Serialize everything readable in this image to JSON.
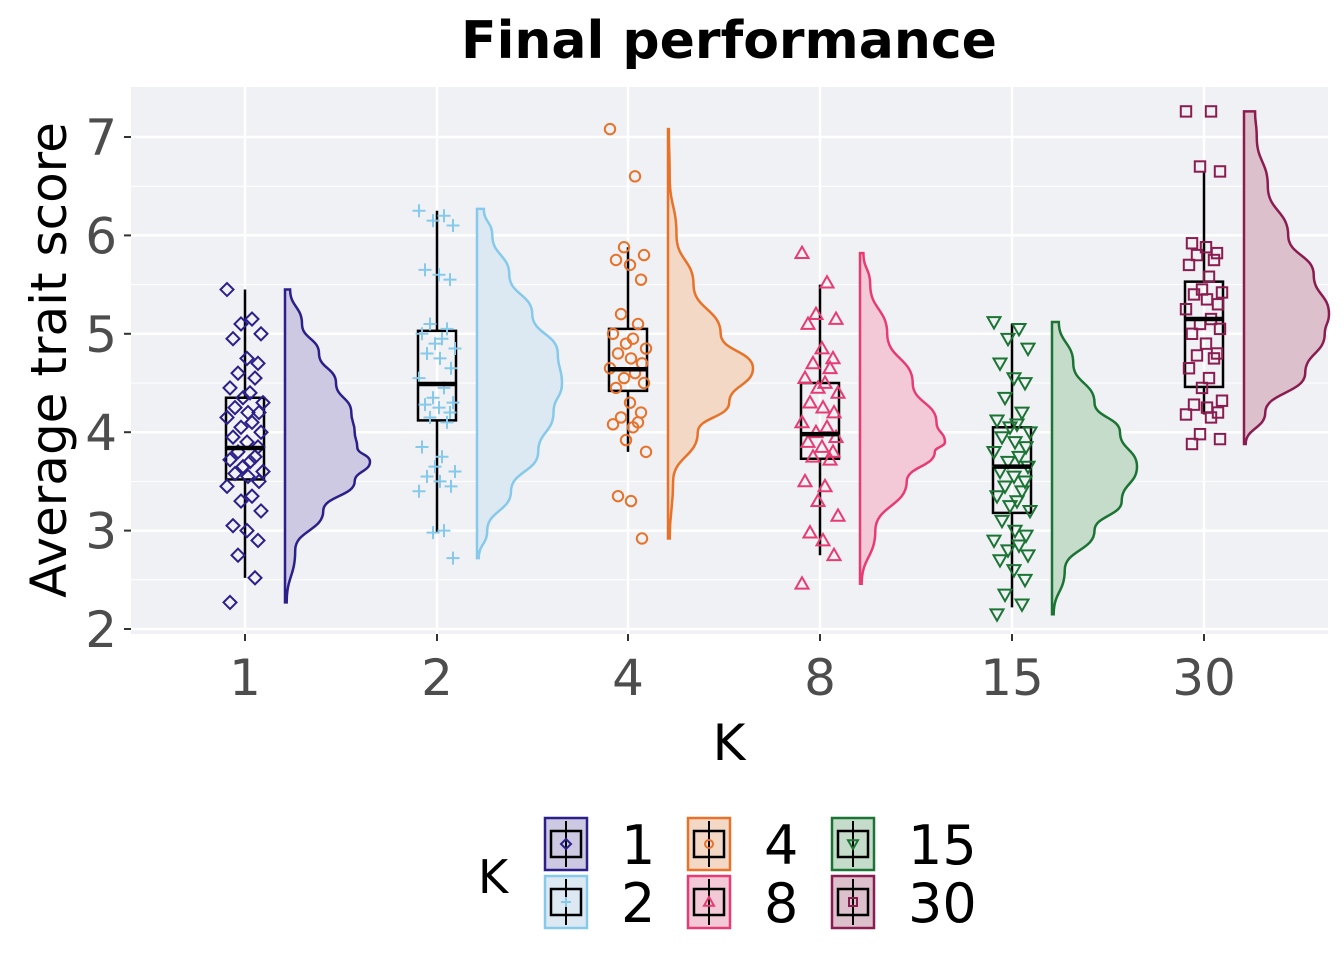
{
  "chart_data": {
    "type": "raincloud",
    "title": "Final performance",
    "xlabel": "K",
    "ylabel": "Average trait score",
    "categories": [
      "1",
      "2",
      "4",
      "8",
      "15",
      "30"
    ],
    "ylim": [
      1.92,
      7.5
    ],
    "yticks": [
      2,
      3,
      4,
      5,
      6,
      7
    ],
    "grid": true,
    "legend_title": "K",
    "legend_position": "bottom",
    "series": [
      {
        "name": "1",
        "color": "#2b1f8a",
        "fill": "#cdc9e2",
        "shape": "diamond",
        "box": {
          "min": 2.52,
          "q1": 3.52,
          "median": 3.84,
          "q3": 4.35,
          "max": 5.45
        },
        "points": [
          5.45,
          5.15,
          5.1,
          5.0,
          4.95,
          4.75,
          4.7,
          4.6,
          4.55,
          4.45,
          4.4,
          4.35,
          4.3,
          4.25,
          4.2,
          4.2,
          4.15,
          4.1,
          4.05,
          4.0,
          3.95,
          3.9,
          3.85,
          3.8,
          3.75,
          3.72,
          3.7,
          3.65,
          3.6,
          3.58,
          3.55,
          3.5,
          3.45,
          3.35,
          3.3,
          3.2,
          3.05,
          3.0,
          2.9,
          2.75,
          2.52,
          2.27
        ],
        "density": [
          [
            2.27,
            0.02
          ],
          [
            2.8,
            0.12
          ],
          [
            3.2,
            0.45
          ],
          [
            3.5,
            0.82
          ],
          [
            3.7,
            1.0
          ],
          [
            3.85,
            0.85
          ],
          [
            4.0,
            0.82
          ],
          [
            4.2,
            0.78
          ],
          [
            4.5,
            0.6
          ],
          [
            4.8,
            0.4
          ],
          [
            5.1,
            0.2
          ],
          [
            5.45,
            0.06
          ]
        ]
      },
      {
        "name": "2",
        "color": "#86c9ea",
        "fill": "#dce9f3",
        "shape": "plus",
        "box": {
          "min": 2.98,
          "q1": 4.12,
          "median": 4.49,
          "q3": 5.03,
          "max": 6.25
        },
        "points": [
          6.25,
          6.2,
          6.15,
          6.1,
          5.65,
          5.6,
          5.55,
          5.1,
          5.05,
          5.0,
          4.95,
          4.9,
          4.85,
          4.8,
          4.75,
          4.65,
          4.55,
          4.45,
          4.35,
          4.3,
          4.28,
          4.25,
          4.2,
          4.15,
          4.1,
          3.85,
          3.75,
          3.65,
          3.6,
          3.55,
          3.5,
          3.45,
          3.4,
          3.0,
          2.98,
          2.72
        ],
        "density": [
          [
            2.72,
            0.02
          ],
          [
            3.0,
            0.12
          ],
          [
            3.4,
            0.4
          ],
          [
            3.8,
            0.72
          ],
          [
            4.2,
            0.9
          ],
          [
            4.5,
            1.0
          ],
          [
            4.8,
            0.95
          ],
          [
            5.2,
            0.65
          ],
          [
            5.6,
            0.38
          ],
          [
            6.0,
            0.18
          ],
          [
            6.27,
            0.08
          ]
        ]
      },
      {
        "name": "4",
        "color": "#e7722a",
        "fill": "#f3d8c5",
        "shape": "circle",
        "box": {
          "min": 3.8,
          "q1": 4.42,
          "median": 4.64,
          "q3": 5.05,
          "max": 5.88
        },
        "points": [
          7.08,
          6.6,
          5.88,
          5.8,
          5.75,
          5.7,
          5.55,
          5.2,
          5.1,
          5.0,
          4.95,
          4.9,
          4.85,
          4.8,
          4.75,
          4.7,
          4.65,
          4.6,
          4.55,
          4.5,
          4.45,
          4.3,
          4.2,
          4.15,
          4.1,
          4.08,
          4.05,
          3.92,
          3.8,
          3.35,
          3.3,
          2.92
        ],
        "density": [
          [
            2.92,
            0.02
          ],
          [
            3.5,
            0.06
          ],
          [
            4.0,
            0.35
          ],
          [
            4.3,
            0.72
          ],
          [
            4.65,
            1.0
          ],
          [
            5.0,
            0.62
          ],
          [
            5.5,
            0.3
          ],
          [
            6.0,
            0.1
          ],
          [
            6.6,
            0.02
          ],
          [
            7.08,
            0.01
          ]
        ]
      },
      {
        "name": "8",
        "color": "#e73c73",
        "fill": "#f3c9d8",
        "shape": "triangle",
        "box": {
          "min": 2.75,
          "q1": 3.73,
          "median": 3.98,
          "q3": 4.5,
          "max": 5.5
        },
        "points": [
          5.82,
          5.52,
          5.2,
          5.15,
          5.1,
          4.85,
          4.75,
          4.7,
          4.65,
          4.55,
          4.5,
          4.45,
          4.4,
          4.3,
          4.25,
          4.2,
          4.1,
          4.05,
          4.0,
          3.95,
          3.9,
          3.85,
          3.8,
          3.75,
          3.72,
          3.5,
          3.45,
          3.3,
          3.15,
          2.98,
          2.9,
          2.75,
          2.46
        ],
        "density": [
          [
            2.46,
            0.02
          ],
          [
            3.0,
            0.18
          ],
          [
            3.5,
            0.55
          ],
          [
            3.8,
            0.88
          ],
          [
            3.9,
            1.0
          ],
          [
            4.1,
            0.9
          ],
          [
            4.5,
            0.62
          ],
          [
            5.0,
            0.32
          ],
          [
            5.5,
            0.12
          ],
          [
            5.82,
            0.04
          ]
        ]
      },
      {
        "name": "15",
        "color": "#1b7434",
        "fill": "#c5dccb",
        "shape": "triangle-down",
        "box": {
          "min": 2.22,
          "q1": 3.18,
          "median": 3.65,
          "q3": 4.05,
          "max": 5.1
        },
        "points": [
          5.12,
          5.05,
          4.95,
          4.85,
          4.7,
          4.55,
          4.5,
          4.35,
          4.2,
          4.12,
          4.08,
          4.05,
          4.0,
          3.95,
          3.9,
          3.85,
          3.8,
          3.75,
          3.7,
          3.65,
          3.6,
          3.55,
          3.5,
          3.45,
          3.4,
          3.35,
          3.3,
          3.25,
          3.2,
          3.1,
          3.0,
          2.95,
          2.9,
          2.85,
          2.8,
          2.75,
          2.7,
          2.6,
          2.5,
          2.35,
          2.25,
          2.15
        ],
        "density": [
          [
            2.15,
            0.02
          ],
          [
            2.6,
            0.15
          ],
          [
            3.0,
            0.5
          ],
          [
            3.3,
            0.82
          ],
          [
            3.65,
            1.0
          ],
          [
            4.0,
            0.8
          ],
          [
            4.3,
            0.5
          ],
          [
            4.7,
            0.25
          ],
          [
            5.12,
            0.08
          ]
        ]
      },
      {
        "name": "30",
        "color": "#8b1c50",
        "fill": "#dcc1cd",
        "shape": "square",
        "box": {
          "min": 4.18,
          "q1": 4.46,
          "median": 5.15,
          "q3": 5.53,
          "max": 6.65
        },
        "points": [
          7.26,
          7.26,
          6.7,
          6.65,
          5.92,
          5.88,
          5.82,
          5.8,
          5.75,
          5.7,
          5.58,
          5.45,
          5.42,
          5.4,
          5.35,
          5.3,
          5.25,
          5.15,
          5.1,
          5.05,
          5.0,
          4.9,
          4.8,
          4.78,
          4.75,
          4.65,
          4.55,
          4.45,
          4.32,
          4.28,
          4.25,
          4.2,
          4.18,
          4.15,
          3.98,
          3.93,
          3.88
        ],
        "density": [
          [
            3.88,
            0.02
          ],
          [
            4.2,
            0.25
          ],
          [
            4.6,
            0.72
          ],
          [
            5.0,
            0.95
          ],
          [
            5.2,
            1.0
          ],
          [
            5.6,
            0.82
          ],
          [
            6.0,
            0.52
          ],
          [
            6.5,
            0.28
          ],
          [
            7.0,
            0.15
          ],
          [
            7.26,
            0.13
          ]
        ]
      }
    ]
  }
}
